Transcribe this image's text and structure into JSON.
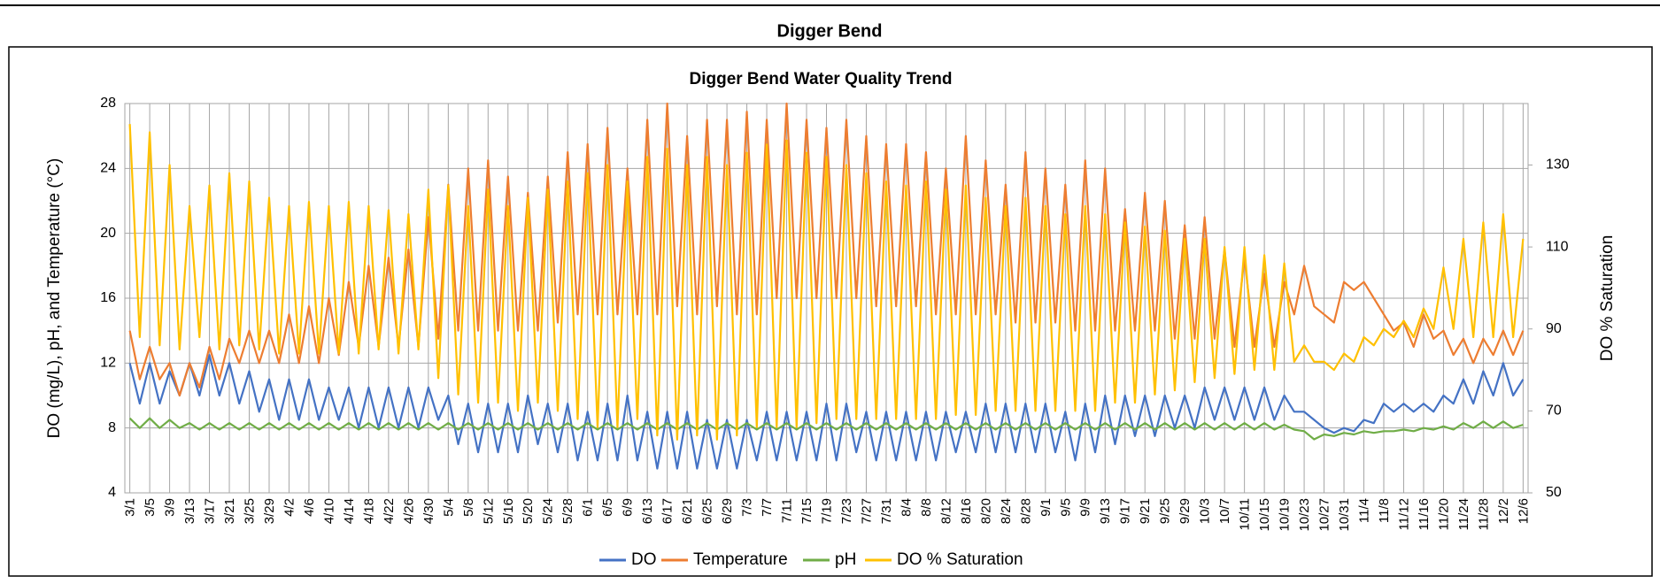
{
  "header": {
    "title": "Digger Bend"
  },
  "chart_data": {
    "type": "line",
    "title": "Digger Bend Water Quality Trend",
    "y_label": "DO (mg/L), pH, and Temperature (°C)",
    "y2_label": "DO % Saturation",
    "categories": [
      "3/1",
      null,
      "3/5",
      null,
      "3/9",
      null,
      "3/13",
      null,
      "3/17",
      null,
      "3/21",
      null,
      "3/25",
      null,
      "3/29",
      null,
      "4/2",
      null,
      "4/6",
      null,
      "4/10",
      null,
      "4/14",
      null,
      "4/18",
      null,
      "4/22",
      null,
      "4/26",
      null,
      "4/30",
      null,
      "5/4",
      null,
      "5/8",
      null,
      "5/12",
      null,
      "5/16",
      null,
      "5/20",
      null,
      "5/24",
      null,
      "5/28",
      null,
      "6/1",
      null,
      "6/5",
      null,
      "6/9",
      null,
      "6/13",
      null,
      "6/17",
      null,
      "6/21",
      null,
      "6/25",
      null,
      "6/29",
      null,
      "7/3",
      null,
      "7/7",
      null,
      "7/11",
      null,
      "7/15",
      null,
      "7/19",
      null,
      "7/23",
      null,
      "7/27",
      null,
      "7/31",
      null,
      "8/4",
      null,
      "8/8",
      null,
      "8/12",
      null,
      "8/16",
      null,
      "8/20",
      null,
      "8/24",
      null,
      "8/28",
      null,
      "9/1",
      null,
      "9/5",
      null,
      "9/9",
      null,
      "9/13",
      null,
      "9/17",
      null,
      "9/21",
      null,
      "9/25",
      null,
      "9/29",
      null,
      "10/3",
      null,
      "10/7",
      null,
      "10/11",
      null,
      "10/15",
      null,
      "10/19",
      null,
      "10/23",
      null,
      "10/27",
      null,
      "10/31",
      null,
      "11/4",
      null,
      "11/8",
      null,
      "11/12",
      null,
      "11/16",
      null,
      "11/20",
      null,
      "11/24",
      null,
      "11/28",
      null,
      "12/2",
      null,
      "12/6"
    ],
    "series": [
      {
        "name": "DO",
        "color": "#4472c4",
        "values": [
          12,
          9.5,
          12,
          9.5,
          11.5,
          10,
          12,
          10,
          12.5,
          10,
          12,
          9.5,
          11.5,
          9,
          11,
          8.5,
          11,
          8.5,
          11,
          8.5,
          10.5,
          8.5,
          10.5,
          8,
          10.5,
          8,
          10.5,
          8,
          10.5,
          8,
          10.5,
          8.5,
          10,
          7,
          9.5,
          6.5,
          9.5,
          6.5,
          9.5,
          6.5,
          10,
          7,
          9.5,
          6.5,
          9.5,
          6,
          9,
          6,
          9.5,
          6,
          10,
          6,
          9,
          5.5,
          9,
          5.5,
          9,
          5.5,
          8.5,
          5.5,
          8.5,
          5.5,
          8.5,
          6,
          9,
          6,
          9,
          6,
          9,
          6,
          9.5,
          6,
          9.5,
          6.5,
          9,
          6,
          9,
          6,
          9,
          6,
          9,
          6,
          9,
          6.5,
          9,
          6.5,
          9.5,
          6.5,
          9.5,
          6.5,
          9.5,
          6.5,
          9.5,
          6.5,
          9,
          6,
          9.5,
          6.5,
          10,
          7,
          10,
          7.5,
          10,
          7.5,
          10,
          8,
          10,
          8,
          10.5,
          8.5,
          10.5,
          8.5,
          10.5,
          8.5,
          10.5,
          8.5,
          10,
          9,
          9,
          8.5,
          8,
          7.7,
          8,
          7.8,
          8.5,
          8.3,
          9.5,
          9,
          9.5,
          9,
          9.5,
          9,
          10,
          9.5,
          11,
          9.5,
          11.5,
          10,
          12,
          10,
          11
        ]
      },
      {
        "name": "Temperature",
        "color": "#ed7d31",
        "values": [
          14,
          11,
          13,
          11,
          12,
          10,
          12,
          10.5,
          13,
          11,
          13.5,
          12,
          14,
          12,
          14,
          12,
          15,
          12,
          15.5,
          12,
          16,
          12.5,
          17,
          13,
          18,
          13,
          18.5,
          13,
          19,
          13,
          21,
          13.5,
          23,
          14,
          24,
          14,
          24.5,
          14,
          23.5,
          14,
          22.5,
          14,
          23.5,
          14.5,
          25,
          15,
          25.5,
          15,
          26.5,
          15,
          24,
          15,
          27,
          15,
          28,
          15.5,
          26,
          15,
          27,
          15.5,
          27,
          15,
          27.5,
          15,
          27,
          16,
          28,
          16,
          27,
          16,
          26.5,
          16,
          27,
          16,
          26,
          15.5,
          25.5,
          15.5,
          25.5,
          15.5,
          25,
          15,
          24,
          15,
          26,
          15,
          24.5,
          15,
          23,
          14.5,
          25,
          14.5,
          24,
          14.5,
          23,
          14,
          24.5,
          14,
          24,
          14,
          21.5,
          14,
          22.5,
          14,
          22,
          13.5,
          20.5,
          13.5,
          21,
          13.5,
          19,
          13,
          18.5,
          13,
          17.5,
          13,
          17,
          15,
          18,
          15.5,
          15,
          14.5,
          17,
          16.5,
          17,
          16,
          15,
          14,
          14.5,
          13,
          15,
          13.5,
          14,
          12.5,
          13.5,
          12,
          13.5,
          12.5,
          14,
          12.5,
          14
        ]
      },
      {
        "name": "pH",
        "color": "#70ad47",
        "values": [
          8.6,
          8.0,
          8.6,
          8.0,
          8.5,
          8.0,
          8.3,
          7.9,
          8.3,
          7.9,
          8.3,
          7.9,
          8.3,
          7.9,
          8.3,
          7.9,
          8.3,
          7.9,
          8.3,
          7.9,
          8.3,
          7.9,
          8.3,
          7.9,
          8.3,
          7.9,
          8.3,
          7.9,
          8.3,
          7.9,
          8.3,
          7.9,
          8.3,
          7.9,
          8.3,
          7.9,
          8.3,
          7.9,
          8.3,
          7.9,
          8.3,
          7.9,
          8.3,
          7.9,
          8.3,
          7.9,
          8.3,
          7.9,
          8.3,
          7.9,
          8.3,
          7.9,
          8.3,
          7.9,
          8.3,
          7.9,
          8.3,
          7.9,
          8.3,
          7.9,
          8.3,
          7.9,
          8.3,
          7.9,
          8.3,
          7.9,
          8.3,
          7.9,
          8.3,
          7.9,
          8.3,
          7.9,
          8.3,
          7.9,
          8.3,
          7.9,
          8.3,
          7.9,
          8.3,
          7.9,
          8.3,
          7.9,
          8.3,
          7.9,
          8.3,
          7.9,
          8.3,
          7.9,
          8.3,
          7.9,
          8.3,
          7.9,
          8.3,
          7.9,
          8.3,
          7.9,
          8.3,
          7.9,
          8.3,
          7.9,
          8.3,
          7.9,
          8.3,
          7.9,
          8.3,
          7.9,
          8.3,
          7.9,
          8.3,
          7.9,
          8.3,
          7.9,
          8.3,
          7.9,
          8.3,
          7.9,
          8.2,
          7.9,
          7.8,
          7.3,
          7.6,
          7.5,
          7.7,
          7.6,
          7.8,
          7.7,
          7.8,
          7.8,
          7.9,
          7.8,
          8.0,
          7.9,
          8.1,
          7.9,
          8.3,
          8.0,
          8.4,
          8.0,
          8.4,
          8.0,
          8.2
        ]
      },
      {
        "name": "DO % Saturation",
        "color": "#ffc000",
        "axis": "y2",
        "values": [
          140,
          88,
          138,
          86,
          130,
          85,
          120,
          88,
          125,
          85,
          128,
          86,
          126,
          85,
          122,
          84,
          120,
          84,
          121,
          84,
          120,
          84,
          121,
          84,
          120,
          85,
          119,
          84,
          118,
          85,
          124,
          78,
          125,
          74,
          120,
          72,
          124,
          72,
          120,
          70,
          122,
          72,
          124,
          70,
          126,
          68,
          128,
          66,
          130,
          66,
          126,
          68,
          132,
          64,
          134,
          63,
          130,
          64,
          132,
          63,
          130,
          64,
          133,
          66,
          135,
          66,
          136,
          66,
          133,
          67,
          132,
          68,
          130,
          68,
          128,
          68,
          126,
          68,
          125,
          68,
          126,
          68,
          124,
          69,
          125,
          69,
          122,
          70,
          120,
          70,
          122,
          70,
          120,
          70,
          118,
          70,
          120,
          70,
          118,
          72,
          116,
          72,
          115,
          74,
          114,
          75,
          112,
          77,
          112,
          78,
          110,
          79,
          110,
          80,
          108,
          80,
          106,
          82,
          86,
          82,
          82,
          80,
          84,
          82,
          88,
          86,
          90,
          88,
          92,
          88,
          95,
          90,
          105,
          90,
          112,
          88,
          116,
          88,
          118,
          88,
          112
        ]
      }
    ],
    "ylim": [
      4,
      28
    ],
    "yticks": [
      4,
      8,
      12,
      16,
      20,
      24,
      28
    ],
    "y2lim": [
      50,
      145
    ],
    "y2ticks": [
      50,
      70,
      90,
      110,
      130
    ],
    "grid": true,
    "legend": "bottom"
  }
}
